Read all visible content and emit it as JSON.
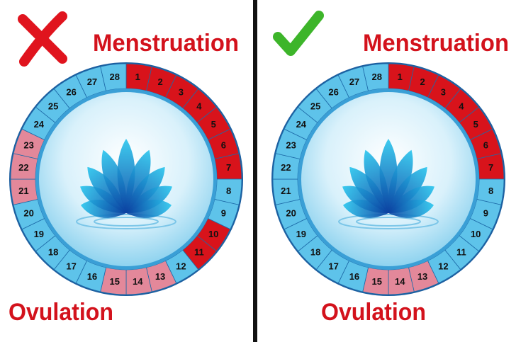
{
  "panels": [
    {
      "verdict": "wrong",
      "mark_color": "#e0141e",
      "top_label": "Menstruation",
      "bottom_label": "Ovulation",
      "label_color_top": "#d3121c",
      "label_color_bottom": "#d3121c",
      "segments": [
        {
          "label": 1,
          "color": "#d8131b"
        },
        {
          "label": 2,
          "color": "#d8131b"
        },
        {
          "label": 3,
          "color": "#d8131b"
        },
        {
          "label": 4,
          "color": "#d8131b"
        },
        {
          "label": 5,
          "color": "#d8131b"
        },
        {
          "label": 6,
          "color": "#d8131b"
        },
        {
          "label": 7,
          "color": "#d8131b"
        },
        {
          "label": 8,
          "color": "#5ec3ea"
        },
        {
          "label": 9,
          "color": "#5ec3ea"
        },
        {
          "label": 10,
          "color": "#d8131b"
        },
        {
          "label": 11,
          "color": "#d8131b"
        },
        {
          "label": 12,
          "color": "#5ec3ea"
        },
        {
          "label": 13,
          "color": "#e3889a"
        },
        {
          "label": 14,
          "color": "#e3889a"
        },
        {
          "label": 15,
          "color": "#e3889a"
        },
        {
          "label": 16,
          "color": "#5ec3ea"
        },
        {
          "label": 17,
          "color": "#5ec3ea"
        },
        {
          "label": 18,
          "color": "#5ec3ea"
        },
        {
          "label": 19,
          "color": "#5ec3ea"
        },
        {
          "label": 20,
          "color": "#5ec3ea"
        },
        {
          "label": 21,
          "color": "#e3889a"
        },
        {
          "label": 22,
          "color": "#e3889a"
        },
        {
          "label": 23,
          "color": "#e3889a"
        },
        {
          "label": 24,
          "color": "#5ec3ea"
        },
        {
          "label": 25,
          "color": "#5ec3ea"
        },
        {
          "label": 26,
          "color": "#5ec3ea"
        },
        {
          "label": 27,
          "color": "#5ec3ea"
        },
        {
          "label": 28,
          "color": "#5ec3ea"
        }
      ]
    },
    {
      "verdict": "right",
      "mark_color": "#3db52a",
      "top_label": "Menstruation",
      "bottom_label": "Ovulation",
      "label_color_top": "#d3121c",
      "label_color_bottom": "#d3121c",
      "segments": [
        {
          "label": 1,
          "color": "#d8131b"
        },
        {
          "label": 2,
          "color": "#d8131b"
        },
        {
          "label": 3,
          "color": "#d8131b"
        },
        {
          "label": 4,
          "color": "#d8131b"
        },
        {
          "label": 5,
          "color": "#d8131b"
        },
        {
          "label": 6,
          "color": "#d8131b"
        },
        {
          "label": 7,
          "color": "#d8131b"
        },
        {
          "label": 8,
          "color": "#5ec3ea"
        },
        {
          "label": 9,
          "color": "#5ec3ea"
        },
        {
          "label": 10,
          "color": "#5ec3ea"
        },
        {
          "label": 11,
          "color": "#5ec3ea"
        },
        {
          "label": 12,
          "color": "#5ec3ea"
        },
        {
          "label": 13,
          "color": "#e3889a"
        },
        {
          "label": 14,
          "color": "#e3889a"
        },
        {
          "label": 15,
          "color": "#e3889a"
        },
        {
          "label": 16,
          "color": "#5ec3ea"
        },
        {
          "label": 17,
          "color": "#5ec3ea"
        },
        {
          "label": 18,
          "color": "#5ec3ea"
        },
        {
          "label": 19,
          "color": "#5ec3ea"
        },
        {
          "label": 20,
          "color": "#5ec3ea"
        },
        {
          "label": 21,
          "color": "#5ec3ea"
        },
        {
          "label": 22,
          "color": "#5ec3ea"
        },
        {
          "label": 23,
          "color": "#5ec3ea"
        },
        {
          "label": 24,
          "color": "#5ec3ea"
        },
        {
          "label": 25,
          "color": "#5ec3ea"
        },
        {
          "label": 26,
          "color": "#5ec3ea"
        },
        {
          "label": 27,
          "color": "#5ec3ea"
        },
        {
          "label": 28,
          "color": "#5ec3ea"
        }
      ]
    }
  ]
}
